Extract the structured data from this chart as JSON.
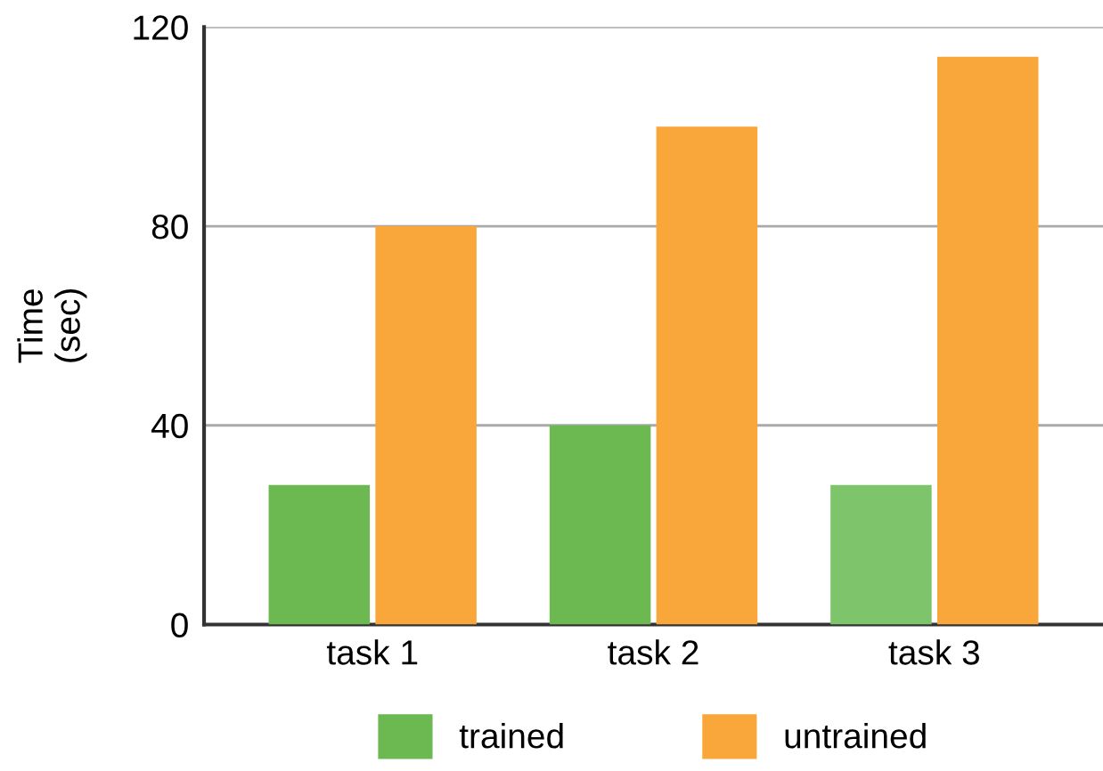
{
  "chart_data": {
    "type": "bar",
    "ylabel": "Time\n(sec)",
    "categories": [
      "task 1",
      "task 2",
      "task 3"
    ],
    "series": [
      {
        "name": "trained",
        "color": "#6cb952",
        "colors": [
          "#6cb952",
          "#6cb952",
          "#7ec46a"
        ],
        "values": [
          28,
          40,
          28
        ]
      },
      {
        "name": "untrained",
        "color": "#f9a63a",
        "values": [
          80,
          100,
          114
        ]
      }
    ],
    "ylim": [
      0,
      120
    ],
    "yticks": [
      0,
      40,
      80,
      120
    ],
    "grid": "y",
    "legend": "bottom"
  }
}
